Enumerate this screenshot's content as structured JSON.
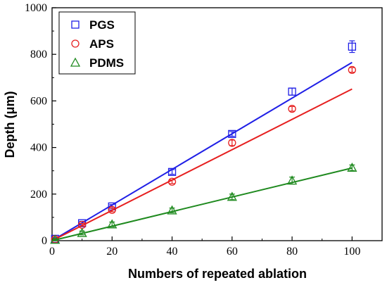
{
  "chart_data": {
    "type": "scatter",
    "xlabel": "Numbers of repeated ablation",
    "ylabel": "Depth (μm)",
    "xlim": [
      0,
      110
    ],
    "ylim": [
      0,
      1000
    ],
    "x_ticks": [
      0,
      20,
      40,
      60,
      80,
      100
    ],
    "y_ticks": [
      0,
      200,
      400,
      600,
      800,
      1000
    ],
    "x_tick_labels": [
      "0",
      "20",
      "40",
      "60",
      "80",
      "100"
    ],
    "y_tick_labels": [
      "0",
      "200",
      "400",
      "600",
      "800",
      "1000"
    ],
    "grid": false,
    "legend_position": "top-left",
    "series": [
      {
        "name": "PGS",
        "marker": "square",
        "color": "#1f1fe6",
        "x": [
          1,
          10,
          20,
          40,
          60,
          80,
          100
        ],
        "y": [
          8,
          75,
          147,
          295,
          458,
          640,
          833
        ],
        "err": [
          5,
          8,
          8,
          10,
          10,
          15,
          25
        ],
        "fit": {
          "x": [
            0,
            100
          ],
          "y": [
            0,
            765
          ]
        }
      },
      {
        "name": "APS",
        "marker": "circle",
        "color": "#e61f1f",
        "x": [
          1,
          10,
          20,
          40,
          60,
          80,
          100
        ],
        "y": [
          6,
          68,
          132,
          253,
          420,
          566,
          733
        ],
        "err": [
          4,
          6,
          8,
          8,
          12,
          10,
          10
        ],
        "fit": {
          "x": [
            0,
            100
          ],
          "y": [
            0,
            651
          ]
        }
      },
      {
        "name": "PDMS",
        "marker": "triangle",
        "color": "#1f8a1f",
        "x": [
          1,
          10,
          20,
          40,
          60,
          80,
          100
        ],
        "y": [
          4,
          33,
          70,
          130,
          188,
          258,
          313
        ],
        "err": [
          4,
          8,
          10,
          10,
          12,
          15,
          12
        ],
        "fit": {
          "x": [
            0,
            100
          ],
          "y": [
            0,
            312
          ]
        }
      }
    ]
  }
}
